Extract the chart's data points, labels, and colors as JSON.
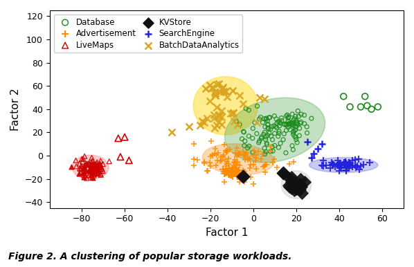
{
  "xlabel": "Factor 1",
  "ylabel": "Factor 2",
  "xlim": [
    -95,
    70
  ],
  "ylim": [
    -45,
    125
  ],
  "xticks": [
    -80,
    -60,
    -40,
    -20,
    0,
    20,
    40,
    60
  ],
  "yticks": [
    -40,
    -20,
    0,
    20,
    40,
    60,
    80,
    100,
    120
  ],
  "caption": "Figure 2. A clustering of popular storage workloads.",
  "colors": {
    "Database": "#1a8a1a",
    "Advertisement": "#FF8C00",
    "LiveMaps": "#CC0000",
    "KVStore": "#111111",
    "SearchEngine": "#2222DD",
    "BatchDataAnalytics": "#DAA520"
  },
  "ellipse_facecolors": {
    "Database": "#3a9a3a",
    "Advertisement": "#FFA040",
    "LiveMaps": "#FF8080",
    "KVStore": "#aaaaaa",
    "SearchEngine": "#6666DD",
    "BatchDataAnalytics": "#FFD700"
  },
  "ellipse_alphas": {
    "Database": 0.3,
    "Advertisement": 0.4,
    "LiveMaps": 0.4,
    "KVStore": 0.25,
    "SearchEngine": 0.35,
    "BatchDataAnalytics": 0.45
  },
  "ellipses": {
    "LiveMaps": [
      -76,
      -10,
      17,
      21,
      0
    ],
    "BatchDataAnalytics": [
      -13,
      43,
      30,
      50,
      0
    ],
    "Advertisement": [
      -7,
      -3,
      34,
      26,
      -15
    ],
    "Database": [
      10,
      22,
      44,
      58,
      -25
    ],
    "SearchEngine": [
      42,
      -8,
      32,
      13,
      0
    ],
    "KVStore": [
      20,
      -25,
      14,
      24,
      0
    ]
  },
  "ellipse_draw_order": [
    "LiveMaps",
    "BatchDataAnalytics",
    "Advertisement",
    "Database",
    "KVStore",
    "SearchEngine"
  ]
}
